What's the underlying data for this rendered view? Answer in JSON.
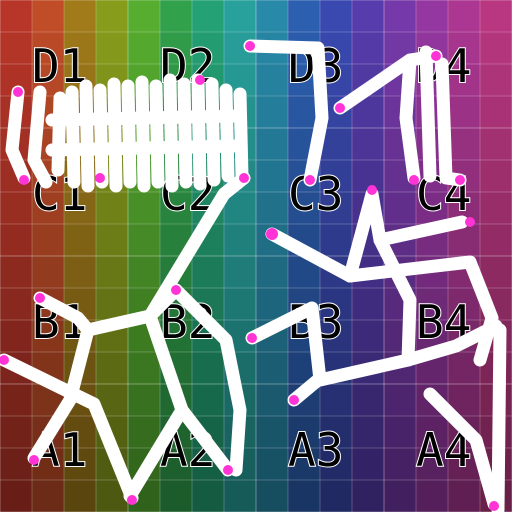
{
  "board": {
    "columns": 4,
    "rows": 4,
    "subdivisions": 4,
    "row_labels_top_to_bottom": [
      "D",
      "C",
      "B",
      "A"
    ],
    "column_labels": [
      "1",
      "2",
      "3",
      "4"
    ],
    "cell_labels": [
      [
        "D1",
        "D2",
        "D3",
        "D4"
      ],
      [
        "C1",
        "C2",
        "C3",
        "C4"
      ],
      [
        "B1",
        "B2",
        "B3",
        "B4"
      ],
      [
        "A1",
        "A2",
        "A3",
        "A4"
      ]
    ],
    "hue_columns_left_to_right": [
      "#c0392b",
      "#c8502a",
      "#a8801c",
      "#8ea31e",
      "#5bb532",
      "#34a84f",
      "#26a87a",
      "#2aa8a3",
      "#2a8fb0",
      "#2f63b8",
      "#3d4db8",
      "#5a3fb3",
      "#7b3cb0",
      "#9c3aa8",
      "#b23a98",
      "#c03a86"
    ],
    "stroke_color": "#ffffff",
    "endpoint_color": "#ff33d6"
  }
}
